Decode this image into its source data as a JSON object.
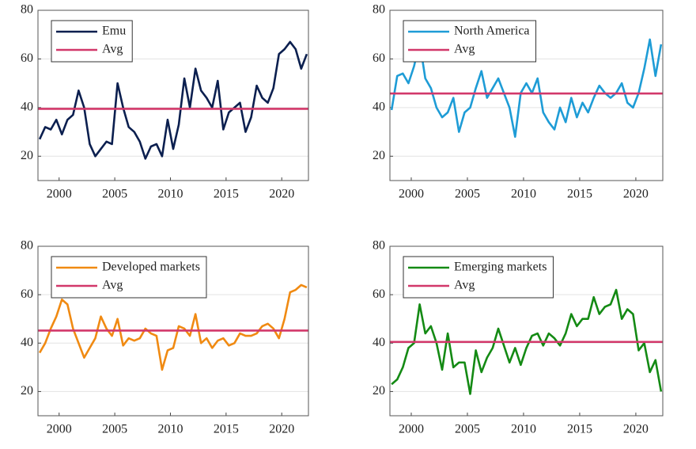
{
  "chart_data": [
    {
      "type": "line",
      "xlim": [
        1998.1,
        2022.4
      ],
      "ylim": [
        10,
        80
      ],
      "xticks": [
        2000,
        2005,
        2010,
        2015,
        2020
      ],
      "yticks": [
        20,
        40,
        60,
        80
      ],
      "grid": "y",
      "legend": "upper left",
      "series": [
        {
          "name": "Emu",
          "color": "#0b1f4f",
          "x": [
            1998.25,
            1998.75,
            1999.25,
            1999.75,
            2000.25,
            2000.75,
            2001.25,
            2001.75,
            2002.25,
            2002.75,
            2003.25,
            2003.75,
            2004.25,
            2004.75,
            2005.25,
            2005.75,
            2006.25,
            2006.75,
            2007.25,
            2007.75,
            2008.25,
            2008.75,
            2009.25,
            2009.75,
            2010.25,
            2010.75,
            2011.25,
            2011.75,
            2012.25,
            2012.75,
            2013.25,
            2013.75,
            2014.25,
            2014.75,
            2015.25,
            2015.75,
            2016.25,
            2016.75,
            2017.25,
            2017.75,
            2018.25,
            2018.75,
            2019.25,
            2019.75,
            2020.25,
            2020.75,
            2021.25,
            2021.75,
            2022.25
          ],
          "values": [
            27,
            32,
            31,
            35,
            29,
            35,
            37,
            47,
            40,
            25,
            20,
            23,
            26,
            25,
            50,
            40,
            32,
            30,
            26,
            19,
            24,
            25,
            20,
            35,
            23,
            33,
            52,
            40,
            56,
            47,
            44,
            40,
            51,
            31,
            38,
            40,
            42,
            30,
            36,
            49,
            44,
            42,
            48,
            62,
            64,
            67,
            64,
            56,
            62
          ]
        }
      ],
      "reference_line": {
        "name": "Avg",
        "value": 39.5,
        "color": "#d2386a"
      }
    },
    {
      "type": "line",
      "xlim": [
        1998.1,
        2022.4
      ],
      "ylim": [
        10,
        80
      ],
      "xticks": [
        2000,
        2005,
        2010,
        2015,
        2020
      ],
      "yticks": [
        20,
        40,
        60,
        80
      ],
      "grid": "y",
      "legend": "upper left",
      "series": [
        {
          "name": "North America",
          "color": "#1e9cd6",
          "x": [
            1998.25,
            1998.75,
            1999.25,
            1999.75,
            2000.25,
            2000.75,
            2001.25,
            2001.75,
            2002.25,
            2002.75,
            2003.25,
            2003.75,
            2004.25,
            2004.75,
            2005.25,
            2005.75,
            2006.25,
            2006.75,
            2007.25,
            2007.75,
            2008.25,
            2008.75,
            2009.25,
            2009.75,
            2010.25,
            2010.75,
            2011.25,
            2011.75,
            2012.25,
            2012.75,
            2013.25,
            2013.75,
            2014.25,
            2014.75,
            2015.25,
            2015.75,
            2016.25,
            2016.75,
            2017.25,
            2017.75,
            2018.25,
            2018.75,
            2019.25,
            2019.75,
            2020.25,
            2020.75,
            2021.25,
            2021.75,
            2022.25
          ],
          "values": [
            39,
            53,
            54,
            50,
            57,
            67,
            52,
            48,
            40,
            36,
            38,
            44,
            30,
            38,
            40,
            48,
            55,
            44,
            48,
            52,
            46,
            40,
            28,
            46,
            50,
            46,
            52,
            38,
            34,
            31,
            40,
            34,
            44,
            36,
            42,
            38,
            44,
            49,
            46,
            44,
            46,
            50,
            42,
            40,
            46,
            56,
            68,
            53,
            66
          ]
        }
      ],
      "reference_line": {
        "name": "Avg",
        "value": 45.8,
        "color": "#d2386a"
      }
    },
    {
      "type": "line",
      "xlim": [
        1998.1,
        2022.4
      ],
      "ylim": [
        10,
        80
      ],
      "xticks": [
        2000,
        2005,
        2010,
        2015,
        2020
      ],
      "yticks": [
        20,
        40,
        60,
        80
      ],
      "grid": "y",
      "legend": "upper left",
      "series": [
        {
          "name": "Developed markets",
          "color": "#f08a12",
          "x": [
            1998.25,
            1998.75,
            1999.25,
            1999.75,
            2000.25,
            2000.75,
            2001.25,
            2001.75,
            2002.25,
            2002.75,
            2003.25,
            2003.75,
            2004.25,
            2004.75,
            2005.25,
            2005.75,
            2006.25,
            2006.75,
            2007.25,
            2007.75,
            2008.25,
            2008.75,
            2009.25,
            2009.75,
            2010.25,
            2010.75,
            2011.25,
            2011.75,
            2012.25,
            2012.75,
            2013.25,
            2013.75,
            2014.25,
            2014.75,
            2015.25,
            2015.75,
            2016.25,
            2016.75,
            2017.25,
            2017.75,
            2018.25,
            2018.75,
            2019.25,
            2019.75,
            2020.25,
            2020.75,
            2021.25,
            2021.75,
            2022.25
          ],
          "values": [
            36,
            40,
            46,
            51,
            58,
            56,
            46,
            40,
            34,
            38,
            42,
            51,
            46,
            43,
            50,
            39,
            42,
            41,
            42,
            46,
            44,
            43,
            29,
            37,
            38,
            47,
            46,
            43,
            52,
            40,
            42,
            38,
            41,
            42,
            39,
            40,
            44,
            43,
            43,
            44,
            47,
            48,
            46,
            42,
            50,
            61,
            62,
            64,
            63
          ]
        }
      ],
      "reference_line": {
        "name": "Avg",
        "value": 45.2,
        "color": "#d2386a"
      }
    },
    {
      "type": "line",
      "xlim": [
        1998.1,
        2022.4
      ],
      "ylim": [
        10,
        80
      ],
      "xticks": [
        2000,
        2005,
        2010,
        2015,
        2020
      ],
      "yticks": [
        20,
        40,
        60,
        80
      ],
      "grid": "y",
      "legend": "upper left",
      "series": [
        {
          "name": "Emerging markets",
          "color": "#148a14",
          "x": [
            1998.25,
            1998.75,
            1999.25,
            1999.75,
            2000.25,
            2000.75,
            2001.25,
            2001.75,
            2002.25,
            2002.75,
            2003.25,
            2003.75,
            2004.25,
            2004.75,
            2005.25,
            2005.75,
            2006.25,
            2006.75,
            2007.25,
            2007.75,
            2008.25,
            2008.75,
            2009.25,
            2009.75,
            2010.25,
            2010.75,
            2011.25,
            2011.75,
            2012.25,
            2012.75,
            2013.25,
            2013.75,
            2014.25,
            2014.75,
            2015.25,
            2015.75,
            2016.25,
            2016.75,
            2017.25,
            2017.75,
            2018.25,
            2018.75,
            2019.25,
            2019.75,
            2020.25,
            2020.75,
            2021.25,
            2021.75,
            2022.25
          ],
          "values": [
            23,
            25,
            30,
            38,
            40,
            56,
            44,
            47,
            40,
            29,
            44,
            30,
            32,
            32,
            19,
            37,
            28,
            34,
            38,
            46,
            39,
            32,
            38,
            31,
            38,
            43,
            44,
            39,
            44,
            42,
            39,
            44,
            52,
            47,
            50,
            50,
            59,
            52,
            55,
            56,
            62,
            50,
            54,
            52,
            37,
            40,
            28,
            33,
            20
          ]
        }
      ],
      "reference_line": {
        "name": "Avg",
        "value": 40.5,
        "color": "#d2386a"
      }
    }
  ]
}
